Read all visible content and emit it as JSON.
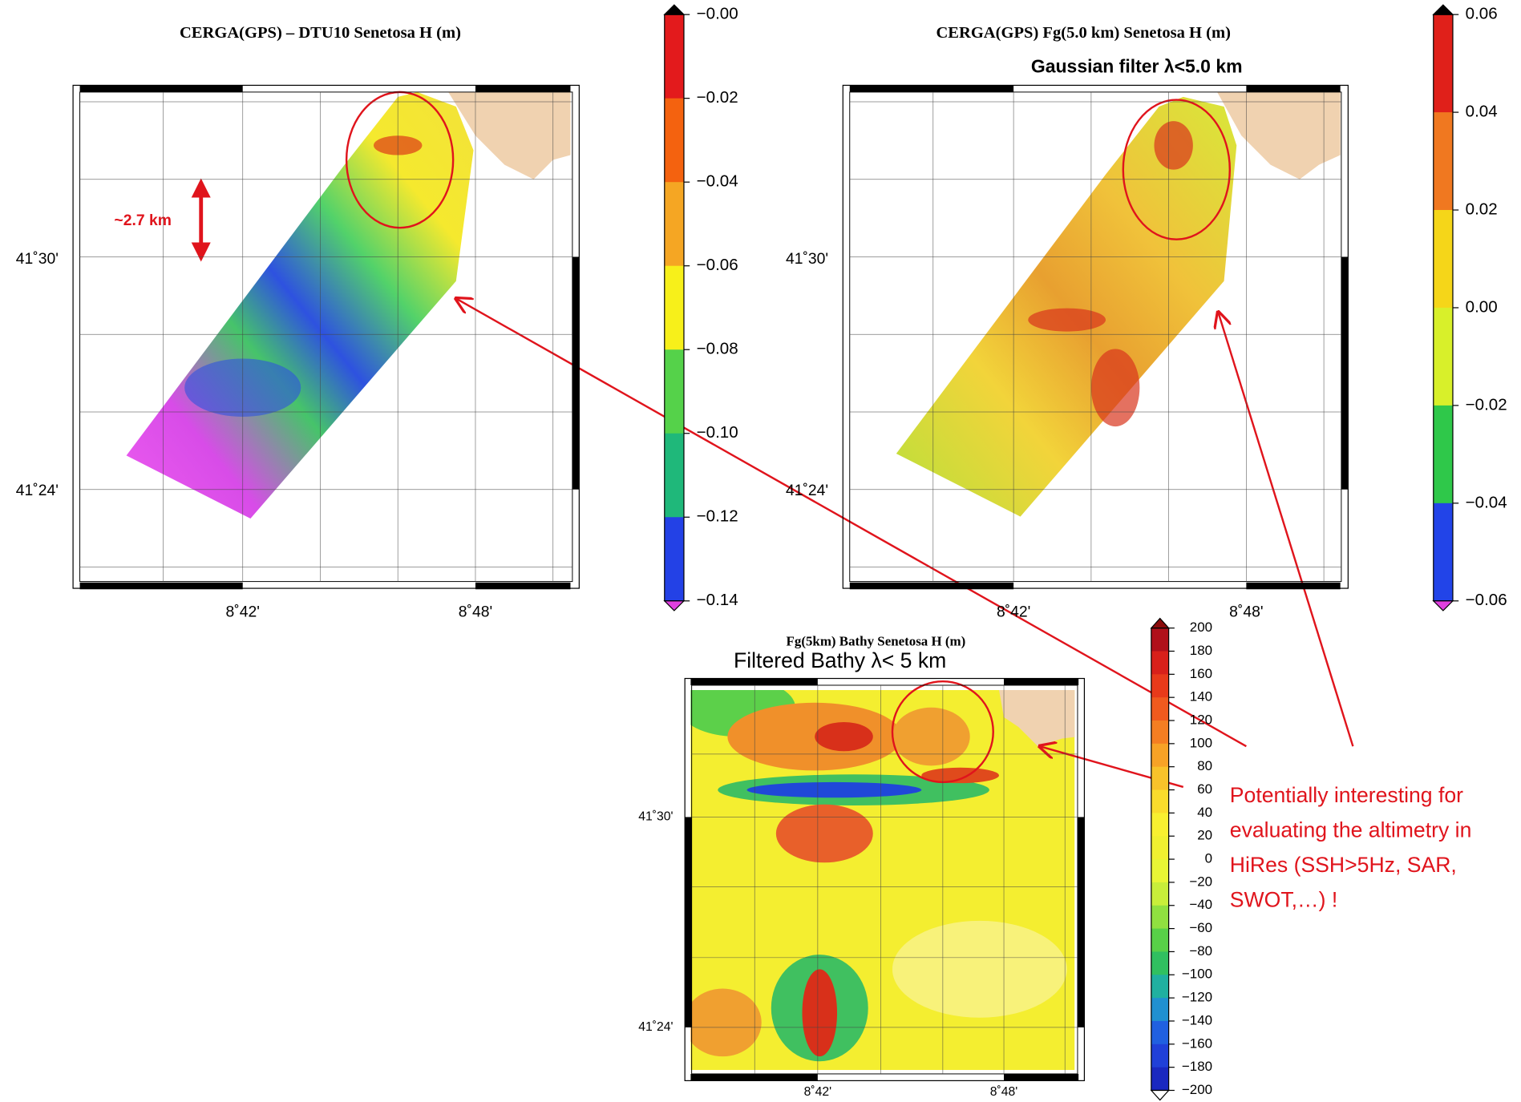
{
  "panels": [
    {
      "title": "CERGA(GPS) – DTU10  Senetosa  H (m)",
      "lat_labels": [
        "41˚30'",
        "41˚24'"
      ],
      "lon_labels": [
        "8˚42'",
        "8˚48'"
      ],
      "colorbar_labels": [
        "−0.00",
        "−0.02",
        "−0.04",
        "−0.06",
        "−0.08",
        "−0.10",
        "−0.12",
        "−0.14"
      ],
      "annotation": "~2.7 km"
    },
    {
      "title": "CERGA(GPS) Fg(5.0 km)  Senetosa  H (m)",
      "subtitle": "Gaussian filter λ<5.0 km",
      "lat_labels": [
        "41˚30'",
        "41˚24'"
      ],
      "lon_labels": [
        "8˚42'",
        "8˚48'"
      ],
      "colorbar_labels": [
        "0.06",
        "0.04",
        "0.02",
        "0.00",
        "−0.02",
        "−0.04",
        "−0.06"
      ]
    },
    {
      "title": "Fg(5km)  Bathy  Senetosa  H (m)",
      "subtitle": "Filtered Bathy λ< 5 km",
      "lat_labels": [
        "41˚30'",
        "41˚24'"
      ],
      "lon_labels": [
        "8˚42'",
        "8˚48'"
      ],
      "colorbar_labels": [
        "200",
        "180",
        "160",
        "140",
        "120",
        "100",
        "80",
        "60",
        "40",
        "20",
        "0",
        "−20",
        "−40",
        "−60",
        "−80",
        "−100",
        "−120",
        "−140",
        "−160",
        "−180",
        "−200"
      ]
    }
  ],
  "callout": [
    "Potentially interesting for",
    "evaluating the altimetry in",
    "HiRes (SSH>5Hz, SAR,",
    "SWOT,…) !"
  ]
}
